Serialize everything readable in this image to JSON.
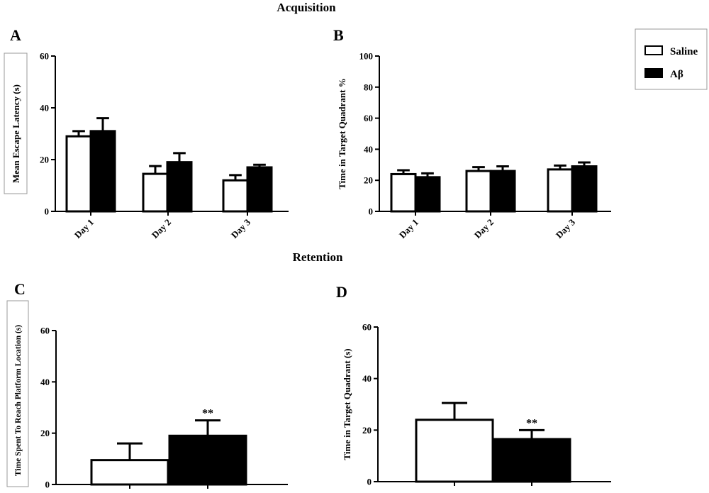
{
  "section_titles": {
    "acquisition": "Acquisition",
    "retention": "Retention"
  },
  "legend": {
    "items": [
      {
        "label": "Saline",
        "fill": "#ffffff"
      },
      {
        "label": "Aβ",
        "fill": "#000000"
      }
    ]
  },
  "colors": {
    "saline": "#ffffff",
    "abeta": "#000000",
    "stroke": "#000000"
  },
  "chart_data": [
    {
      "panel": "A",
      "type": "bar",
      "categories": [
        "Day 1",
        "Day 2",
        "Day 3"
      ],
      "ylabel": "Mean Escape Latency (s)",
      "ylim": [
        0,
        60
      ],
      "yticks": [
        0,
        20,
        40,
        60
      ],
      "series": [
        {
          "name": "Saline",
          "values": [
            29,
            14.5,
            12
          ],
          "errors": [
            2,
            3,
            2
          ]
        },
        {
          "name": "Aβ",
          "values": [
            31,
            19,
            17
          ],
          "errors": [
            5,
            3.5,
            1
          ]
        }
      ]
    },
    {
      "panel": "B",
      "type": "bar",
      "categories": [
        "Day 1",
        "Day 2",
        "Day 3"
      ],
      "ylabel": "Time in Target Quadrant %",
      "ylim": [
        0,
        100
      ],
      "yticks": [
        0,
        20,
        40,
        60,
        80,
        100
      ],
      "series": [
        {
          "name": "Saline",
          "values": [
            24,
            26,
            27
          ],
          "errors": [
            2.5,
            2.5,
            2.5
          ]
        },
        {
          "name": "Aβ",
          "values": [
            22,
            26,
            29
          ],
          "errors": [
            2.5,
            3,
            2.5
          ]
        }
      ]
    },
    {
      "panel": "C",
      "type": "bar",
      "categories": [
        "",
        ""
      ],
      "ylabel": "Time Spent To Reach Platform Location (s)",
      "ylim": [
        0,
        60
      ],
      "yticks": [
        0,
        20,
        40,
        60
      ],
      "bars": [
        {
          "name": "Saline",
          "value": 9.5,
          "error": 6.5,
          "annotation": ""
        },
        {
          "name": "Aβ",
          "value": 19,
          "error": 6,
          "annotation": "**"
        }
      ]
    },
    {
      "panel": "D",
      "type": "bar",
      "categories": [
        "",
        ""
      ],
      "ylabel": "Time in Target Quadrant (s)",
      "ylim": [
        0,
        60
      ],
      "yticks": [
        0,
        20,
        40,
        60
      ],
      "bars": [
        {
          "name": "Saline",
          "value": 24,
          "error": 6.5,
          "annotation": ""
        },
        {
          "name": "Aβ",
          "value": 16.5,
          "error": 3.5,
          "annotation": "**"
        }
      ]
    }
  ]
}
